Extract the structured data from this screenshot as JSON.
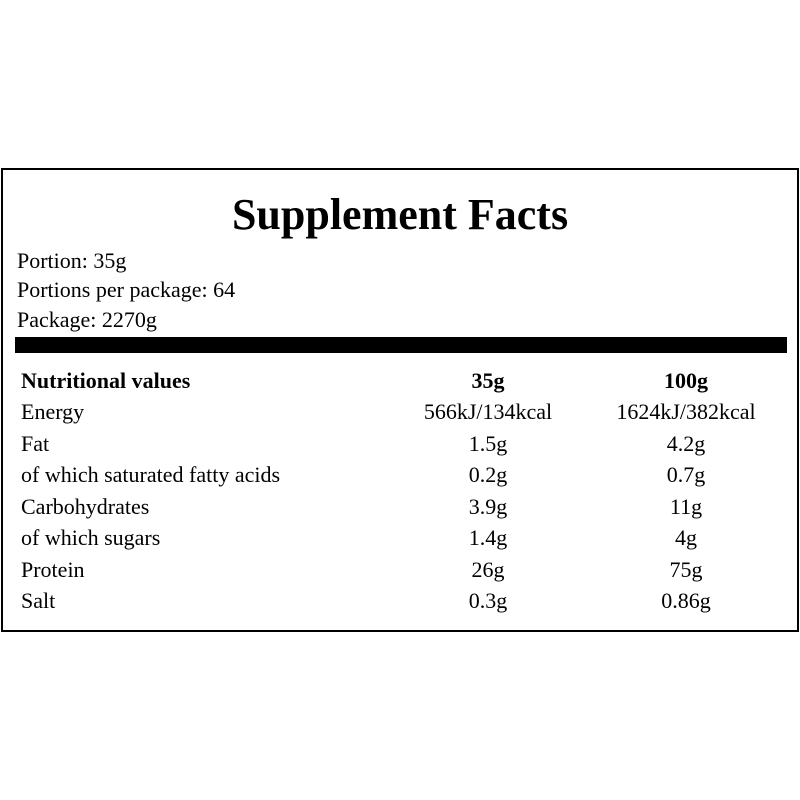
{
  "header": {
    "title": "Supplement Facts"
  },
  "info": [
    "Portion: 35g",
    "Portions per package: 64",
    "Package: 2270g"
  ],
  "table": {
    "header": [
      "Nutritional values",
      "35g",
      "100g"
    ],
    "rows": [
      [
        "Energy",
        "566kJ/134kcal",
        "1624kJ/382kcal"
      ],
      [
        "Fat",
        "1.5g",
        "4.2g"
      ],
      [
        "of which saturated fatty acids",
        "0.2g",
        "0.7g"
      ],
      [
        "Carbohydrates",
        "3.9g",
        "11g"
      ],
      [
        "of which sugars",
        "1.4g",
        "4g"
      ],
      [
        "Protein",
        "26g",
        "75g"
      ],
      [
        "Salt",
        "0.3g",
        "0.86g"
      ]
    ]
  }
}
